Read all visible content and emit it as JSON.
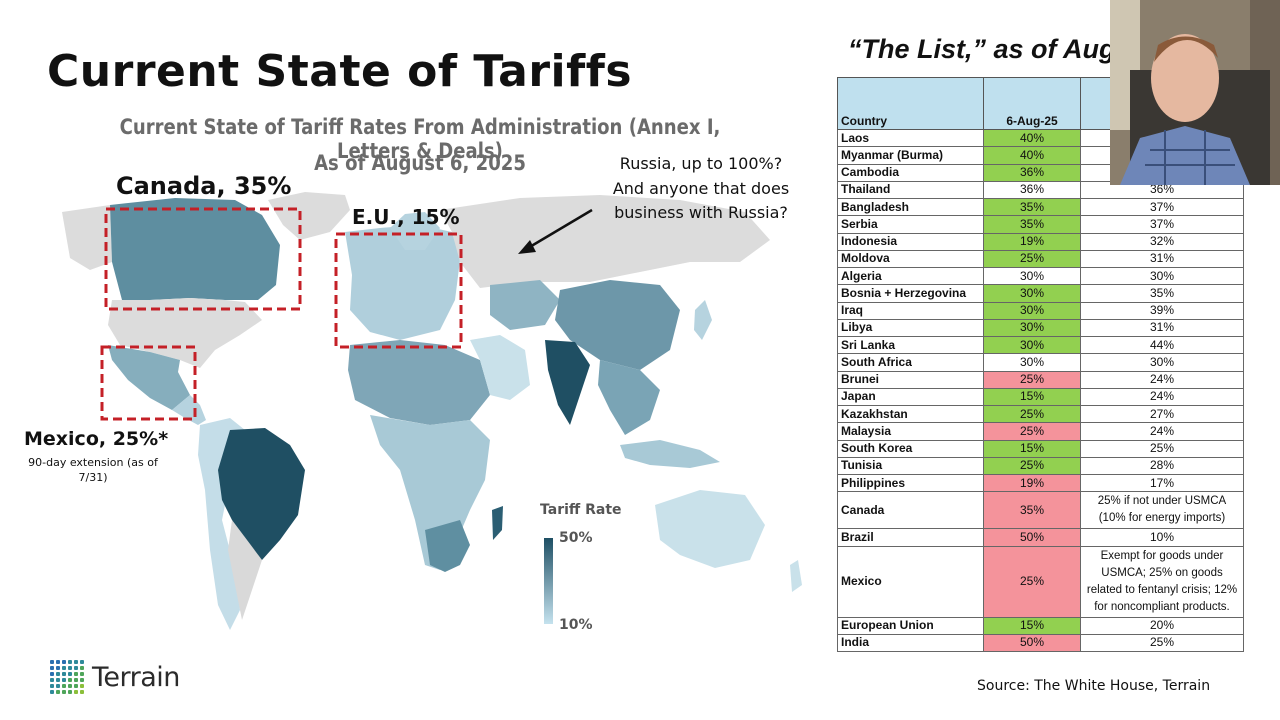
{
  "slide": {
    "title": "Current State of Tariffs",
    "map_title": "Current State of Tariff Rates From Administration (Annex I, Letters & Deals)",
    "map_date": "As of August 6, 2025"
  },
  "callouts": {
    "canada": "Canada, 35%",
    "eu": "E.U., 15%",
    "mexico": "Mexico, 25%*",
    "mexico_note": "90-day extension (as of 7/31)",
    "russia_line1": "Russia, up to 100%?",
    "russia_line2": "And anyone that does",
    "russia_line3": "business with Russia?"
  },
  "legend": {
    "title": "Tariff Rate",
    "max_label": "50%",
    "min_label": "10%",
    "color_high": "#1e4f64",
    "color_low": "#c5e2ee"
  },
  "logo": {
    "text": "Terrain",
    "icon": "terrain-dot-grid-icon",
    "colors": [
      "#2a6fb0",
      "#2f8a9a",
      "#4ea55a",
      "#8bbf3a"
    ]
  },
  "list": {
    "title": "“The List,” as of Aug",
    "headers": {
      "country": "Country",
      "col2": "6-Aug-25",
      "col3": ""
    },
    "rows": [
      {
        "country": "Laos",
        "rate": "40%",
        "prior": "",
        "status": "lower"
      },
      {
        "country": "Myanmar (Burma)",
        "rate": "40%",
        "prior": "",
        "status": "lower"
      },
      {
        "country": "Cambodia",
        "rate": "36%",
        "prior": "",
        "status": "lower"
      },
      {
        "country": "Thailand",
        "rate": "36%",
        "prior": "36%",
        "status": "same"
      },
      {
        "country": "Bangladesh",
        "rate": "35%",
        "prior": "37%",
        "status": "lower"
      },
      {
        "country": "Serbia",
        "rate": "35%",
        "prior": "37%",
        "status": "lower"
      },
      {
        "country": "Indonesia",
        "rate": "19%",
        "prior": "32%",
        "status": "lower"
      },
      {
        "country": "Moldova",
        "rate": "25%",
        "prior": "31%",
        "status": "lower"
      },
      {
        "country": "Algeria",
        "rate": "30%",
        "prior": "30%",
        "status": "same"
      },
      {
        "country": "Bosnia + Herzegovina",
        "rate": "30%",
        "prior": "35%",
        "status": "lower"
      },
      {
        "country": "Iraq",
        "rate": "30%",
        "prior": "39%",
        "status": "lower"
      },
      {
        "country": "Libya",
        "rate": "30%",
        "prior": "31%",
        "status": "lower"
      },
      {
        "country": "Sri Lanka",
        "rate": "30%",
        "prior": "44%",
        "status": "lower"
      },
      {
        "country": "South Africa",
        "rate": "30%",
        "prior": "30%",
        "status": "same"
      },
      {
        "country": "Brunei",
        "rate": "25%",
        "prior": "24%",
        "status": "higher"
      },
      {
        "country": "Japan",
        "rate": "15%",
        "prior": "24%",
        "status": "lower"
      },
      {
        "country": "Kazakhstan",
        "rate": "25%",
        "prior": "27%",
        "status": "lower"
      },
      {
        "country": "Malaysia",
        "rate": "25%",
        "prior": "24%",
        "status": "higher"
      },
      {
        "country": "South Korea",
        "rate": "15%",
        "prior": "25%",
        "status": "lower"
      },
      {
        "country": "Tunisia",
        "rate": "25%",
        "prior": "28%",
        "status": "lower"
      },
      {
        "country": "Philippines",
        "rate": "19%",
        "prior": "17%",
        "status": "higher"
      },
      {
        "country": "Canada",
        "rate": "35%",
        "prior": "25% if not under USMCA (10% for energy imports)",
        "status": "higher"
      },
      {
        "country": "Brazil",
        "rate": "50%",
        "prior": "10%",
        "status": "higher"
      },
      {
        "country": "Mexico",
        "rate": "25%",
        "prior": "Exempt for goods under USMCA; 25% on goods related to fentanyl crisis; 12% for noncompliant products.",
        "status": "higher"
      },
      {
        "country": "European Union",
        "rate": "15%",
        "prior": "20%",
        "status": "lower"
      },
      {
        "country": "India",
        "rate": "50%",
        "prior": "25%",
        "status": "higher"
      }
    ],
    "status_colors": {
      "lower": "#92d050",
      "higher": "#f4939b",
      "same": "#ffffff"
    },
    "header_color": "#bfe0ee"
  },
  "source": "Source: The White House, Terrain"
}
